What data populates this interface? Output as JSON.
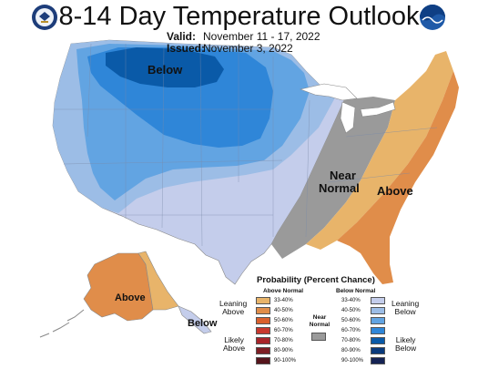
{
  "header": {
    "title": "8-14 Day Temperature Outlook",
    "valid_label": "Valid:",
    "valid_value": "November 11 - 17, 2022",
    "issued_label": "Issued:",
    "issued_value": "November 3, 2022"
  },
  "logos": {
    "left": "noaa-commerce-seal-icon",
    "right": "noaa-logo-icon"
  },
  "map_labels": {
    "below_north": "Below",
    "near_normal_1": "Near",
    "near_normal_2": "Normal",
    "above_east": "Above",
    "above_alaska": "Above",
    "below_alaska": "Below"
  },
  "legend": {
    "title": "Probability (Percent Chance)",
    "above_header": "Above Normal",
    "below_header": "Below Normal",
    "near_normal_1": "Near",
    "near_normal_2": "Normal",
    "leaning_above_1": "Leaning",
    "leaning_above_2": "Above",
    "likely_above_1": "Likely",
    "likely_above_2": "Above",
    "leaning_below_1": "Leaning",
    "leaning_below_2": "Below",
    "likely_below_1": "Likely",
    "likely_below_2": "Below",
    "above": [
      {
        "range": "33-40%",
        "color": "#e8b46a"
      },
      {
        "range": "40-50%",
        "color": "#e08d4a"
      },
      {
        "range": "50-60%",
        "color": "#d9602e"
      },
      {
        "range": "60-70%",
        "color": "#c8382e"
      },
      {
        "range": "70-80%",
        "color": "#a8252a"
      },
      {
        "range": "80-90%",
        "color": "#7e1e24"
      },
      {
        "range": "90-100%",
        "color": "#56151c"
      }
    ],
    "below": [
      {
        "range": "33-40%",
        "color": "#c4cdeb"
      },
      {
        "range": "40-50%",
        "color": "#9cbde6"
      },
      {
        "range": "50-60%",
        "color": "#62a4e2"
      },
      {
        "range": "60-70%",
        "color": "#2f86d8"
      },
      {
        "range": "70-80%",
        "color": "#0a5aa8"
      },
      {
        "range": "80-90%",
        "color": "#0a3a7c"
      },
      {
        "range": "90-100%",
        "color": "#152354"
      }
    ],
    "near_normal_color": "#9a9a9a"
  }
}
